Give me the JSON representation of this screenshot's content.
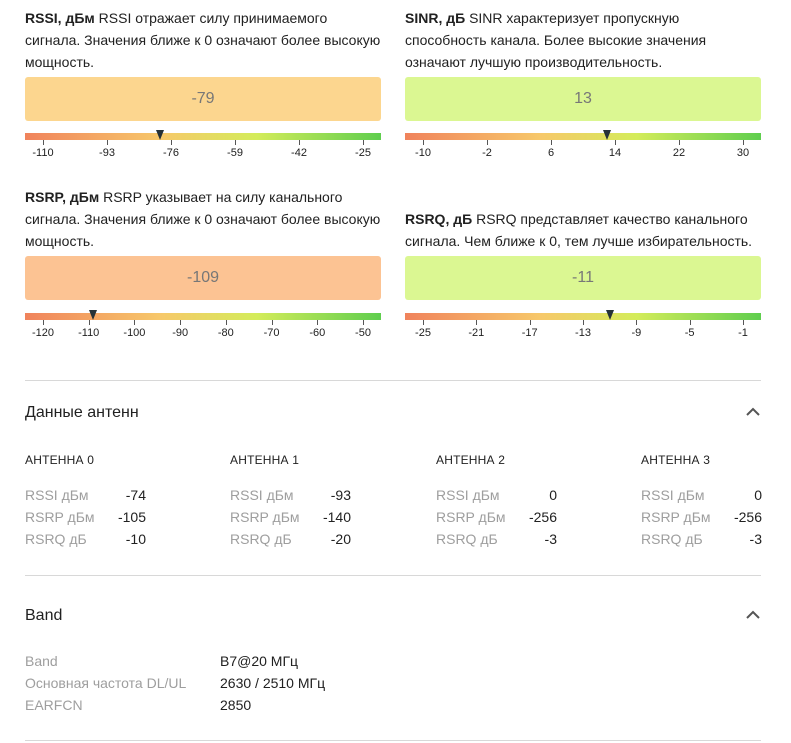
{
  "metrics": {
    "rssi": {
      "name": "RSSI, дБм",
      "description": "RSSI отражает силу принимаемого сигнала. Значения ближе к 0 означают более высокую мощность.",
      "value": "-79",
      "box_color": "#fcd68f",
      "scale_labels": [
        "-110",
        "-93",
        "-76",
        "-59",
        "-42",
        "-25"
      ],
      "scale_min": -110,
      "scale_max": -25,
      "numeric_value": -79
    },
    "sinr": {
      "name": "SINR, дБ",
      "description": "SINR характеризует пропускную способность канала. Более высокие значения означают лучшую производительность.",
      "value": "13",
      "box_color": "#dbf792",
      "scale_labels": [
        "-10",
        "-2",
        "6",
        "14",
        "22",
        "30"
      ],
      "scale_min": -10,
      "scale_max": 30,
      "numeric_value": 13
    },
    "rsrp": {
      "name": "RSRP, дБм",
      "description": "RSRP указывает на силу канального сигнала. Значения ближе к 0 означают более высокую мощность.",
      "value": "-109",
      "box_color": "#fcc393",
      "scale_labels": [
        "-120",
        "-110",
        "-100",
        "-90",
        "-80",
        "-70",
        "-60",
        "-50"
      ],
      "scale_min": -125,
      "scale_max": -45,
      "numeric_value": -109
    },
    "rsrq": {
      "name": "RSRQ, дБ",
      "description": "RSRQ представляет качество канального сигнала. Чем ближе к 0, тем лучше избирательность.",
      "value": "-11",
      "box_color": "#dbf792",
      "scale_labels": [
        "-25",
        "-21",
        "-17",
        "-13",
        "-9",
        "-5",
        "-1"
      ],
      "scale_min": -27,
      "scale_max": 1,
      "numeric_value": -11
    }
  },
  "antenna_section": {
    "title": "Данные антенн",
    "antennas": [
      {
        "label": "АНТЕННА 0",
        "rows": [
          {
            "k": "RSSI дБм",
            "v": "-74"
          },
          {
            "k": "RSRP дБм",
            "v": "-105"
          },
          {
            "k": "RSRQ дБ",
            "v": "-10"
          }
        ]
      },
      {
        "label": "АНТЕННА 1",
        "rows": [
          {
            "k": "RSSI дБм",
            "v": "-93"
          },
          {
            "k": "RSRP дБм",
            "v": "-140"
          },
          {
            "k": "RSRQ дБ",
            "v": "-20"
          }
        ]
      },
      {
        "label": "АНТЕННА 2",
        "rows": [
          {
            "k": "RSSI дБм",
            "v": "0"
          },
          {
            "k": "RSRP дБм",
            "v": "-256"
          },
          {
            "k": "RSRQ дБ",
            "v": "-3"
          }
        ]
      },
      {
        "label": "АНТЕННА 3",
        "rows": [
          {
            "k": "RSSI дБм",
            "v": "0"
          },
          {
            "k": "RSRP дБм",
            "v": "-256"
          },
          {
            "k": "RSRQ дБ",
            "v": "-3"
          }
        ]
      }
    ]
  },
  "band_section": {
    "title": "Band",
    "rows": [
      {
        "k": "Band",
        "v": "B7@20 МГц"
      },
      {
        "k": "Основная частота DL/UL",
        "v": "2630 / 2510 МГц"
      },
      {
        "k": "EARFCN",
        "v": "2850"
      }
    ]
  },
  "icons": {
    "collapse": "chevron-up-icon"
  }
}
